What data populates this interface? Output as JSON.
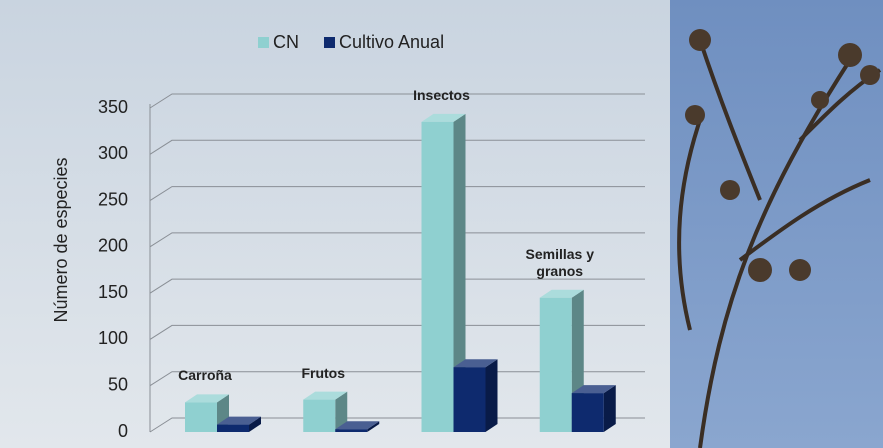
{
  "chart_data": {
    "type": "bar3d",
    "y_label": "Número de especies",
    "categories": [
      "Carroña",
      "Frutos",
      "Insectos",
      "Semillas y granos"
    ],
    "series": [
      {
        "name": "CN",
        "color": "#8fd0d0",
        "values": [
          32,
          35,
          335,
          145
        ]
      },
      {
        "name": "Cultivo Anual",
        "color": "#0e2a6e",
        "values": [
          8,
          3,
          70,
          42
        ]
      }
    ],
    "ylim": [
      0,
      350
    ],
    "yticks": [
      0,
      50,
      100,
      150,
      200,
      250,
      300,
      350
    ],
    "grid": true
  }
}
